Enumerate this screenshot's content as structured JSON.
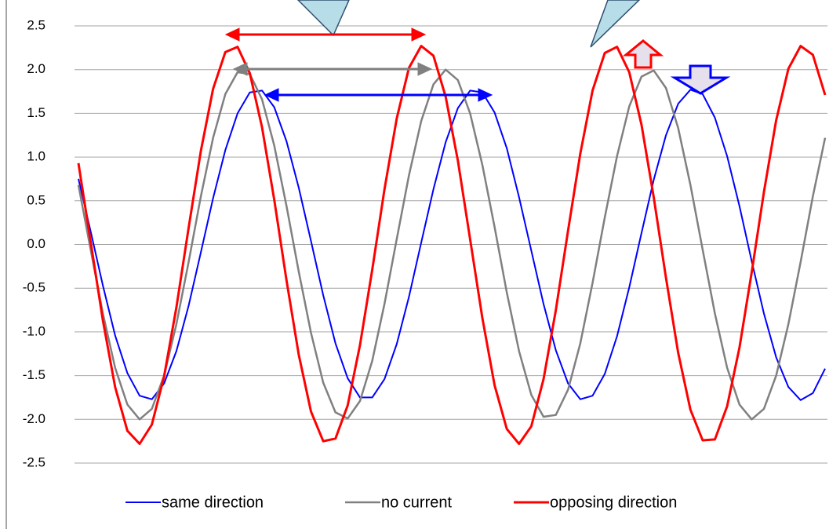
{
  "chart_data": {
    "type": "line",
    "categories": [
      null,
      null,
      null,
      null,
      null,
      null,
      null,
      null,
      null,
      null,
      null,
      null,
      null,
      null,
      null,
      null,
      null,
      null,
      null,
      null,
      null,
      null,
      null,
      null,
      null,
      null,
      null,
      null,
      null,
      null,
      null,
      null,
      null,
      null,
      null,
      null,
      null,
      null,
      null,
      null,
      null,
      null,
      null,
      null,
      null,
      null,
      null,
      null,
      null,
      null,
      null,
      null,
      null,
      null,
      null,
      null,
      null,
      null,
      null,
      null,
      null,
      null
    ],
    "series": [
      {
        "name": "same direction",
        "color": "#0000ff",
        "values": [
          0.75,
          0.15,
          -0.47,
          -1.04,
          -1.47,
          -1.73,
          -1.77,
          -1.59,
          -1.22,
          -0.7,
          -0.09,
          0.53,
          1.08,
          1.5,
          1.74,
          1.76,
          1.57,
          1.18,
          0.65,
          0.04,
          -0.58,
          -1.13,
          -1.53,
          -1.75,
          -1.75,
          -1.54,
          -1.14,
          -0.6,
          0.02,
          0.63,
          1.17,
          1.56,
          1.76,
          1.74,
          1.51,
          1.1,
          0.54,
          -0.07,
          -0.68,
          -1.21,
          -1.59,
          -1.77,
          -1.73,
          -1.48,
          -1.05,
          -0.49,
          0.13,
          0.74,
          1.25,
          1.61,
          1.77,
          1.72,
          1.45,
          1.01,
          0.44,
          -0.19,
          -0.79,
          -1.29,
          -1.63,
          -1.78,
          -1.7,
          -1.42
        ]
      },
      {
        "name": "no current",
        "color": "#808080",
        "values": [
          0.68,
          -0.06,
          -0.79,
          -1.41,
          -1.83,
          -2.0,
          -1.88,
          -1.5,
          -0.91,
          -0.2,
          0.55,
          1.22,
          1.72,
          1.97,
          1.95,
          1.66,
          1.13,
          0.44,
          -0.31,
          -1.01,
          -1.58,
          -1.92,
          -1.99,
          -1.79,
          -1.33,
          -0.68,
          0.06,
          0.79,
          1.41,
          1.83,
          2.0,
          1.88,
          1.5,
          0.91,
          0.2,
          -0.55,
          -1.22,
          -1.72,
          -1.97,
          -1.95,
          -1.66,
          -1.13,
          -0.44,
          0.31,
          1.01,
          1.58,
          1.92,
          1.99,
          1.79,
          1.33,
          0.68,
          -0.06,
          -0.79,
          -1.41,
          -1.83,
          -2.0,
          -1.88,
          -1.5,
          -0.91,
          -0.2,
          0.55,
          1.22
        ]
      },
      {
        "name": "opposing direction",
        "color": "#ff0000",
        "values": [
          0.93,
          0.03,
          -0.87,
          -1.63,
          -2.13,
          -2.28,
          -2.06,
          -1.51,
          -0.72,
          0.19,
          1.07,
          1.78,
          2.2,
          2.26,
          1.96,
          1.34,
          0.51,
          -0.41,
          -1.26,
          -1.91,
          -2.25,
          -2.22,
          -1.84,
          -1.15,
          -0.29,
          0.63,
          1.44,
          2.02,
          2.27,
          2.16,
          1.69,
          0.96,
          0.06,
          -0.84,
          -1.61,
          -2.11,
          -2.28,
          -2.08,
          -1.54,
          -0.75,
          0.16,
          1.04,
          1.76,
          2.19,
          2.26,
          1.97,
          1.37,
          0.54,
          -0.38,
          -1.24,
          -1.89,
          -2.24,
          -2.23,
          -1.85,
          -1.18,
          -0.32,
          0.6,
          1.42,
          2.01,
          2.27,
          2.17,
          1.71
        ]
      }
    ],
    "ylim": [
      -2.5,
      2.5
    ],
    "yticks": [
      {
        "value": 2.5,
        "label": "2.5"
      },
      {
        "value": 2.0,
        "label": "2.0"
      },
      {
        "value": 1.5,
        "label": "1.5"
      },
      {
        "value": 1.0,
        "label": "1.0"
      },
      {
        "value": 0.5,
        "label": "0.5"
      },
      {
        "value": 0,
        "label": "0.0"
      },
      {
        "value": -0.5,
        "label": "-0.5"
      },
      {
        "value": -1.0,
        "label": "-1.0"
      },
      {
        "value": -1.5,
        "label": "-1.5"
      },
      {
        "value": -2.0,
        "label": "-2.0"
      },
      {
        "value": -2.5,
        "label": "-2.5"
      }
    ],
    "grid": true,
    "legend": "bottom"
  }
}
